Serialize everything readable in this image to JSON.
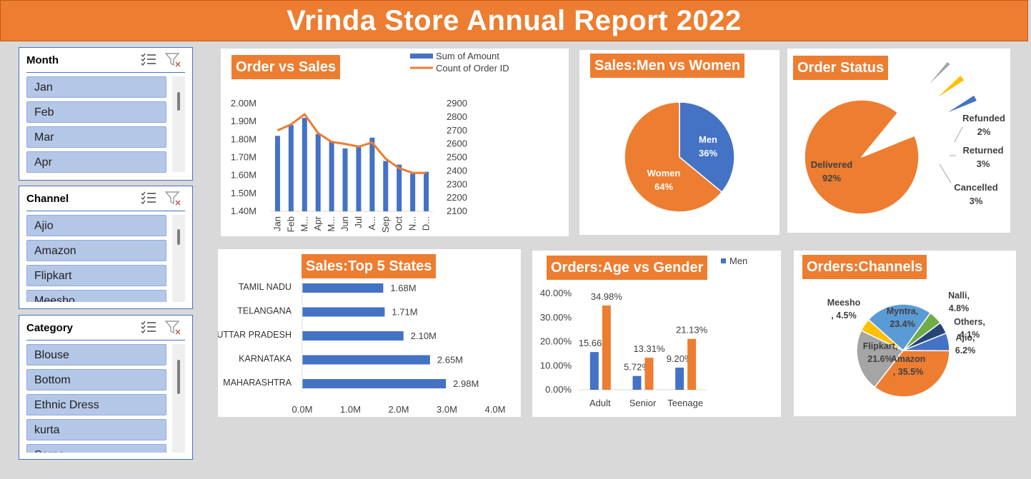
{
  "header": {
    "title": "Vrinda Store Annual Report 2022"
  },
  "colors": {
    "orange": "#ed7d31",
    "blue": "#4472c4",
    "gray": "#a5a5a5",
    "gold": "#ffc000",
    "lightblue": "#5b9bd5",
    "green": "#70ad47",
    "navy": "#264478"
  },
  "slicers": {
    "month": {
      "title": "Month",
      "items": [
        "Jan",
        "Feb",
        "Mar",
        "Apr"
      ]
    },
    "channel": {
      "title": "Channel",
      "items": [
        "Ajio",
        "Amazon",
        "Flipkart",
        "Meesho"
      ]
    },
    "category": {
      "title": "Category",
      "items": [
        "Blouse",
        "Bottom",
        "Ethnic Dress",
        "kurta",
        "Saree"
      ]
    }
  },
  "cards": {
    "order_sales": "Order vs Sales",
    "men_women": "Sales:Men vs Women",
    "order_status": "Order Status",
    "top_states": "Sales:Top 5 States",
    "age_gender": "Orders:Age vs Gender",
    "channels": "Orders:Channels"
  },
  "chart_data": [
    {
      "id": "order_sales",
      "type": "bar",
      "title": "Order vs Sales",
      "categories": [
        "Jan",
        "Feb",
        "Mar",
        "Apr",
        "May",
        "Jun",
        "Jul",
        "Aug",
        "Sep",
        "Oct",
        "Nov",
        "Dec"
      ],
      "category_labels": [
        "Jan",
        "Feb",
        "M...",
        "Apr",
        "M...",
        "Jun",
        "Jul",
        "A...",
        "Sep",
        "Oct",
        "N...",
        "D..."
      ],
      "series": [
        {
          "name": "Sum of Amount",
          "kind": "bar",
          "axis": "left",
          "values": [
            1.82,
            1.88,
            1.92,
            1.83,
            1.79,
            1.75,
            1.76,
            1.81,
            1.68,
            1.66,
            1.61,
            1.62
          ]
        },
        {
          "name": "Count of Order ID",
          "kind": "line",
          "axis": "right",
          "values": [
            2700,
            2745,
            2820,
            2680,
            2615,
            2600,
            2580,
            2610,
            2490,
            2420,
            2385,
            2385
          ]
        }
      ],
      "y_left": {
        "min": 1.4,
        "max": 2.0,
        "ticks": [
          "2.00M",
          "1.90M",
          "1.80M",
          "1.70M",
          "1.60M",
          "1.50M",
          "1.40M"
        ]
      },
      "y_right": {
        "min": 2100,
        "max": 2900,
        "ticks": [
          "2900",
          "2800",
          "2700",
          "2600",
          "2500",
          "2400",
          "2300",
          "2200",
          "2100"
        ]
      },
      "legend_position": "top"
    },
    {
      "id": "men_women",
      "type": "pie",
      "title": "Sales:Men vs Women",
      "slices": [
        {
          "name": "Men",
          "value": 36,
          "label": "36%"
        },
        {
          "name": "Women",
          "value": 64,
          "label": "64%"
        }
      ]
    },
    {
      "id": "order_status",
      "type": "pie",
      "title": "Order Status",
      "slices": [
        {
          "name": "Delivered",
          "value": 92,
          "label": "92%"
        },
        {
          "name": "Refunded",
          "value": 2,
          "label": "2%"
        },
        {
          "name": "Returned",
          "value": 3,
          "label": "3%"
        },
        {
          "name": "Cancelled",
          "value": 3,
          "label": "3%"
        }
      ]
    },
    {
      "id": "top_states",
      "type": "bar",
      "orientation": "horizontal",
      "title": "Sales:Top 5 States",
      "categories": [
        "TAMIL NADU",
        "TELANGANA",
        "UTTAR PRADESH",
        "KARNATAKA",
        "MAHARASHTRA"
      ],
      "values": [
        1.68,
        1.71,
        2.1,
        2.65,
        2.98
      ],
      "value_labels": [
        "1.68M",
        "1.71M",
        "2.10M",
        "2.65M",
        "2.98M"
      ],
      "x_ticks": [
        "0.0M",
        "1.0M",
        "2.0M",
        "3.0M",
        "4.0M"
      ],
      "xlim": [
        0,
        4
      ]
    },
    {
      "id": "age_gender",
      "type": "bar",
      "title": "Orders:Age vs Gender",
      "categories": [
        "Adult",
        "Senior",
        "Teenage"
      ],
      "series": [
        {
          "name": "Men",
          "values": [
            15.66,
            5.72,
            9.2
          ],
          "labels": [
            "15.66%",
            "5.72%",
            "9.20%"
          ]
        },
        {
          "values": [
            34.98,
            13.31,
            21.13
          ],
          "labels": [
            "34.98%",
            "13.31%",
            "21.13%"
          ]
        }
      ],
      "y_ticks": [
        "40.00%",
        "30.00%",
        "20.00%",
        "10.00%",
        "0.00%"
      ],
      "ylim": [
        0,
        40
      ],
      "legend_position": "top-right"
    },
    {
      "id": "channels",
      "type": "pie",
      "title": "Orders:Channels",
      "slices": [
        {
          "name": "Amazon",
          "value": 35.5,
          "label": "Amazon , 35.5%"
        },
        {
          "name": "Flipkart",
          "value": 21.6,
          "label": "Flipkart, 21.6%"
        },
        {
          "name": "Meesho",
          "value": 4.5,
          "label": "Meesho , 4.5%"
        },
        {
          "name": "Myntra",
          "value": 23.4,
          "label": "Myntra, 23.4%"
        },
        {
          "name": "Nalli",
          "value": 4.8,
          "label": "Nalli, 4.8%"
        },
        {
          "name": "Others",
          "value": 4.1,
          "label": "Others, 4.1%"
        },
        {
          "name": "Ajio",
          "value": 6.2,
          "label": "Ajio, 6.2%"
        }
      ]
    }
  ]
}
